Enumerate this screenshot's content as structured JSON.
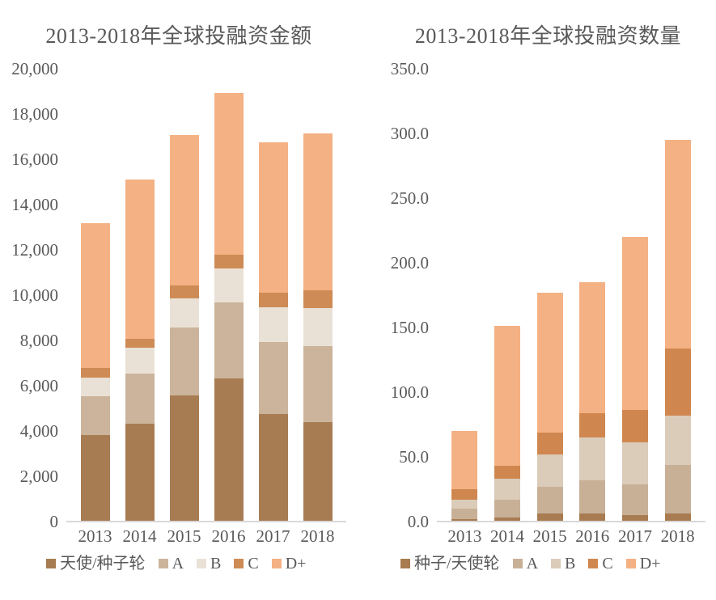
{
  "chart_data": [
    {
      "type": "bar",
      "stacked": true,
      "title": "2013-2018年全球投融资金额",
      "categories": [
        "2013",
        "2014",
        "2015",
        "2016",
        "2017",
        "2018"
      ],
      "series": [
        {
          "name": "天使/种子轮",
          "color": "#A87C52",
          "values": [
            3810,
            4320,
            5570,
            6310,
            4760,
            4400
          ]
        },
        {
          "name": "A",
          "color": "#CBB49B",
          "values": [
            1730,
            2200,
            3000,
            3370,
            3160,
            3360
          ]
        },
        {
          "name": "B",
          "color": "#EAE1D6",
          "values": [
            810,
            1150,
            1290,
            1510,
            1550,
            1670
          ]
        },
        {
          "name": "C",
          "color": "#CE8B55",
          "values": [
            440,
            420,
            560,
            600,
            650,
            780
          ]
        },
        {
          "name": "D+",
          "color": "#F4B183",
          "values": [
            6390,
            7020,
            6660,
            7140,
            6630,
            6940
          ]
        }
      ],
      "totals": [
        13180,
        15110,
        17080,
        18930,
        16750,
        17140
      ],
      "ylim": [
        0,
        20000
      ],
      "ytick_step": 2000,
      "ytick_labels": [
        "20,000",
        "18,000",
        "16,000",
        "14,000",
        "12,000",
        "10,000",
        "8,000",
        "6,000",
        "4,000",
        "2,000",
        "0"
      ],
      "grid": false,
      "legend_position": "bottom"
    },
    {
      "type": "bar",
      "stacked": true,
      "title": "2013-2018年全球投融资数量",
      "categories": [
        "2013",
        "2014",
        "2015",
        "2016",
        "2017",
        "2018"
      ],
      "series": [
        {
          "name": "种子/天使轮",
          "color": "#A87B50",
          "values": [
            2,
            3,
            6,
            6,
            5,
            6
          ]
        },
        {
          "name": "A",
          "color": "#C8B097",
          "values": [
            8,
            14,
            21,
            26,
            24,
            38
          ]
        },
        {
          "name": "B",
          "color": "#DBCBB9",
          "values": [
            7,
            16,
            25,
            33,
            32,
            38
          ]
        },
        {
          "name": "C",
          "color": "#CF874F",
          "values": [
            8,
            10,
            17,
            19,
            25,
            52
          ]
        },
        {
          "name": "D+",
          "color": "#F4B183",
          "values": [
            45,
            108,
            108,
            101,
            134,
            161
          ]
        }
      ],
      "totals": [
        70,
        151,
        177,
        185,
        220,
        295
      ],
      "ylim": [
        0,
        350
      ],
      "ytick_step": 50,
      "ytick_labels": [
        "350.0",
        "300.0",
        "250.0",
        "200.0",
        "150.0",
        "100.0",
        "50.0",
        "0.0"
      ],
      "grid": false,
      "legend_position": "bottom"
    }
  ],
  "colors": {
    "text": "#595959",
    "axis_line": "#D9D9D9",
    "background": "#FFFFFF"
  }
}
